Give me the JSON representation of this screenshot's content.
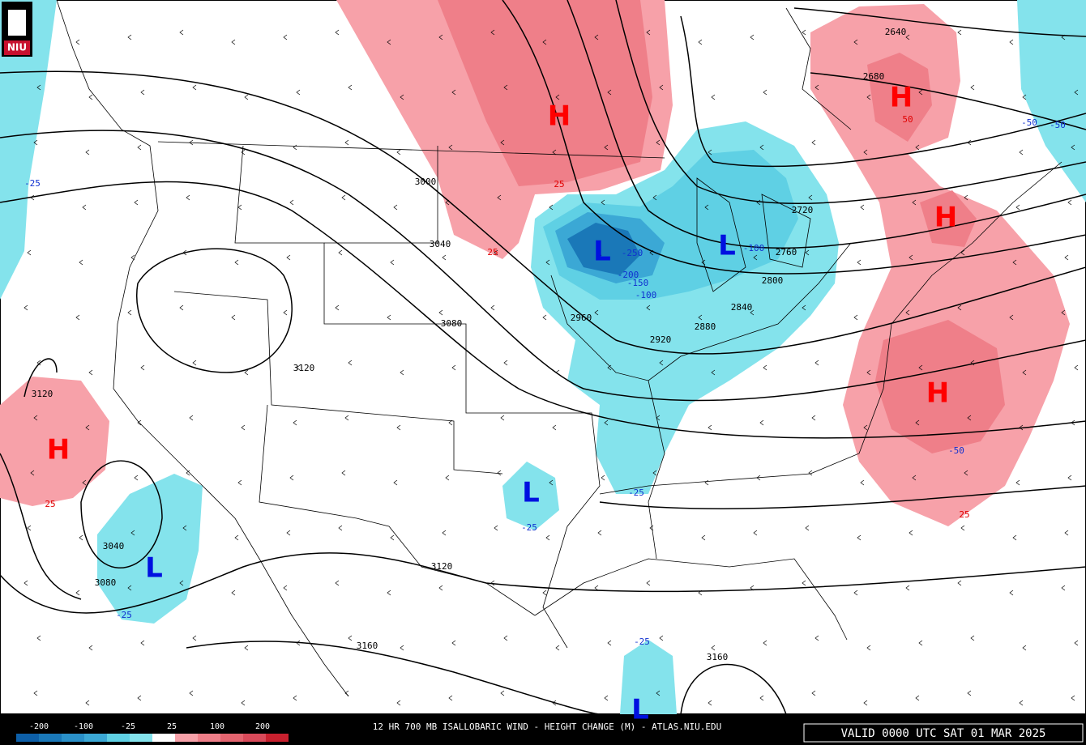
{
  "logo": "NIU",
  "centers": [
    "H",
    "H",
    "H",
    "H",
    "H",
    "L",
    "L",
    "L",
    "L",
    "L"
  ],
  "contour_labels": [
    2640,
    2680,
    3000,
    3040,
    3080,
    3120,
    3120,
    3040,
    3080,
    3120,
    3160,
    3160,
    2960,
    2920,
    2880,
    2840,
    2800,
    2760,
    2720
  ],
  "change_labels": [
    50,
    -25,
    25,
    25,
    -25,
    -25,
    -25,
    -50,
    25,
    -25,
    -100,
    -250,
    -200,
    -150,
    -100,
    -50,
    25,
    -50
  ],
  "colorbar": {
    "labels": [
      -200,
      -100,
      -25,
      25,
      100,
      200
    ]
  },
  "footer": {
    "title": "12 HR 700 MB ISALLOBARIC WIND - HEIGHT CHANGE (M) - ATLAS.NIU.EDU",
    "valid": "VALID 0000 UTC SAT 01 MAR 2025"
  }
}
